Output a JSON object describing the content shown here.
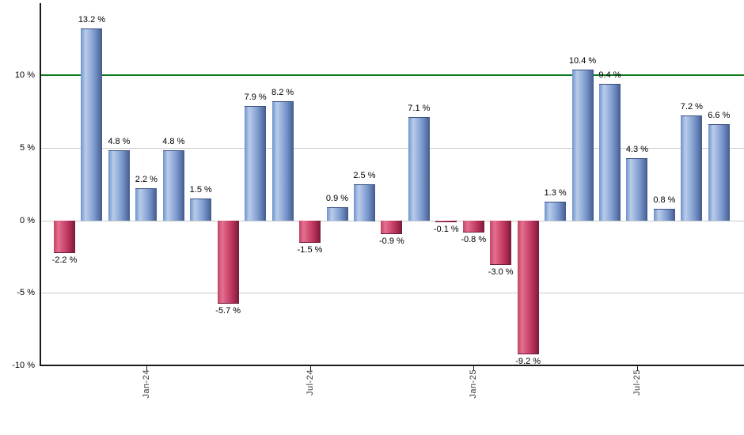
{
  "chart": {
    "title": "",
    "description_label": "Monthly returns bar chart"
  },
  "chart_data": {
    "type": "bar",
    "title": "",
    "xlabel": "",
    "ylabel": "",
    "values": [
      -2.2,
      13.2,
      4.8,
      2.2,
      4.8,
      1.5,
      -5.7,
      7.9,
      8.2,
      -1.5,
      0.9,
      2.5,
      -0.9,
      7.1,
      -0.1,
      -0.8,
      -3.0,
      -9.2,
      1.3,
      10.4,
      9.4,
      4.3,
      0.8,
      7.2,
      6.6
    ],
    "bar_labels": [
      "-2.2 %",
      "13.2 %",
      "4.8 %",
      "2.2 %",
      "4.8 %",
      "1.5 %",
      "-5.7 %",
      "7.9 %",
      "8.2 %",
      "-1.5 %",
      "0.9 %",
      "2.5 %",
      "-0.9 %",
      "7.1 %",
      "-0.1 %",
      "-0.8 %",
      "-3.0 %",
      "-9.2 %",
      "1.3 %",
      "10.4 %",
      "9.4 %",
      "4.3 %",
      "0.8 %",
      "7.2 %",
      "6.6 %"
    ],
    "x_ticks": [
      {
        "index": 3,
        "label": "Jan-24"
      },
      {
        "index": 9,
        "label": "Jul-24"
      },
      {
        "index": 15,
        "label": "Jan-25"
      },
      {
        "index": 21,
        "label": "Jul-25"
      }
    ],
    "y_ticks": [
      {
        "value": 10,
        "label": "10 %"
      },
      {
        "value": 5,
        "label": "5 %"
      },
      {
        "value": 0,
        "label": "0 %"
      },
      {
        "value": -5,
        "label": "-5 %"
      },
      {
        "value": -10,
        "label": "-10 %"
      }
    ],
    "ylim": [
      -10,
      15
    ],
    "grid": true,
    "legend": null,
    "reference_line": {
      "value": 10,
      "color": "#0a7a1e"
    },
    "colors": {
      "positive_bar": "#7e9bd0",
      "negative_bar": "#c13a62",
      "gridline": "#cacaca",
      "axis": "#1a1a1a",
      "label_text": "#000000",
      "x_tick_text": "#3c3c3c",
      "background": "#ffffff"
    }
  }
}
